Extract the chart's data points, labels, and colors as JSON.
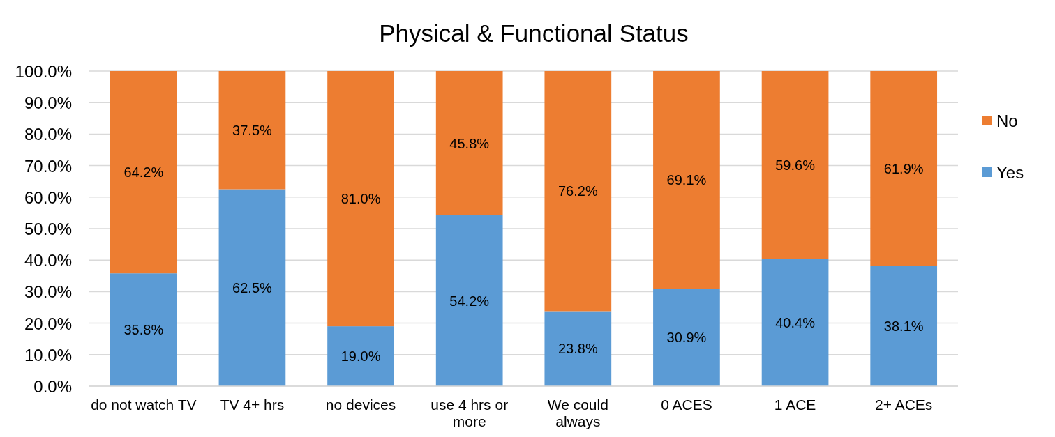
{
  "chart_data": {
    "type": "bar",
    "title": "Physical & Functional Status",
    "categories": [
      "do not watch TV",
      "TV 4+ hrs",
      "no devices",
      "use 4 hrs or more",
      "We could always",
      "0 ACES",
      "1 ACE",
      "2+ ACEs"
    ],
    "stacked": true,
    "series": [
      {
        "name": "Yes",
        "color": "#5b9bd5",
        "values": [
          35.8,
          62.5,
          19.0,
          54.2,
          23.8,
          30.9,
          40.4,
          38.1
        ],
        "value_labels": [
          "35.8%",
          "62.5%",
          "19.0%",
          "54.2%",
          "23.8%",
          "30.9%",
          "40.4%",
          "38.1%"
        ]
      },
      {
        "name": "No",
        "color": "#ed7d31",
        "values": [
          64.2,
          37.5,
          81.0,
          45.8,
          76.2,
          69.1,
          59.6,
          61.9
        ],
        "value_labels": [
          "64.2%",
          "37.5%",
          "81.0%",
          "45.8%",
          "76.2%",
          "69.1%",
          "59.6%",
          "61.9%"
        ]
      }
    ],
    "ylim": [
      0,
      100
    ],
    "yticks": [
      {
        "value": 0,
        "label": "0.0%"
      },
      {
        "value": 10,
        "label": "10.0%"
      },
      {
        "value": 20,
        "label": "20.0%"
      },
      {
        "value": 30,
        "label": "30.0%"
      },
      {
        "value": 40,
        "label": "40.0%"
      },
      {
        "value": 50,
        "label": "50.0%"
      },
      {
        "value": 60,
        "label": "60.0%"
      },
      {
        "value": 70,
        "label": "70.0%"
      },
      {
        "value": 80,
        "label": "80.0%"
      },
      {
        "value": 90,
        "label": "90.0%"
      },
      {
        "value": 100,
        "label": "100.0%"
      }
    ],
    "grid": "y",
    "legend": "right"
  }
}
